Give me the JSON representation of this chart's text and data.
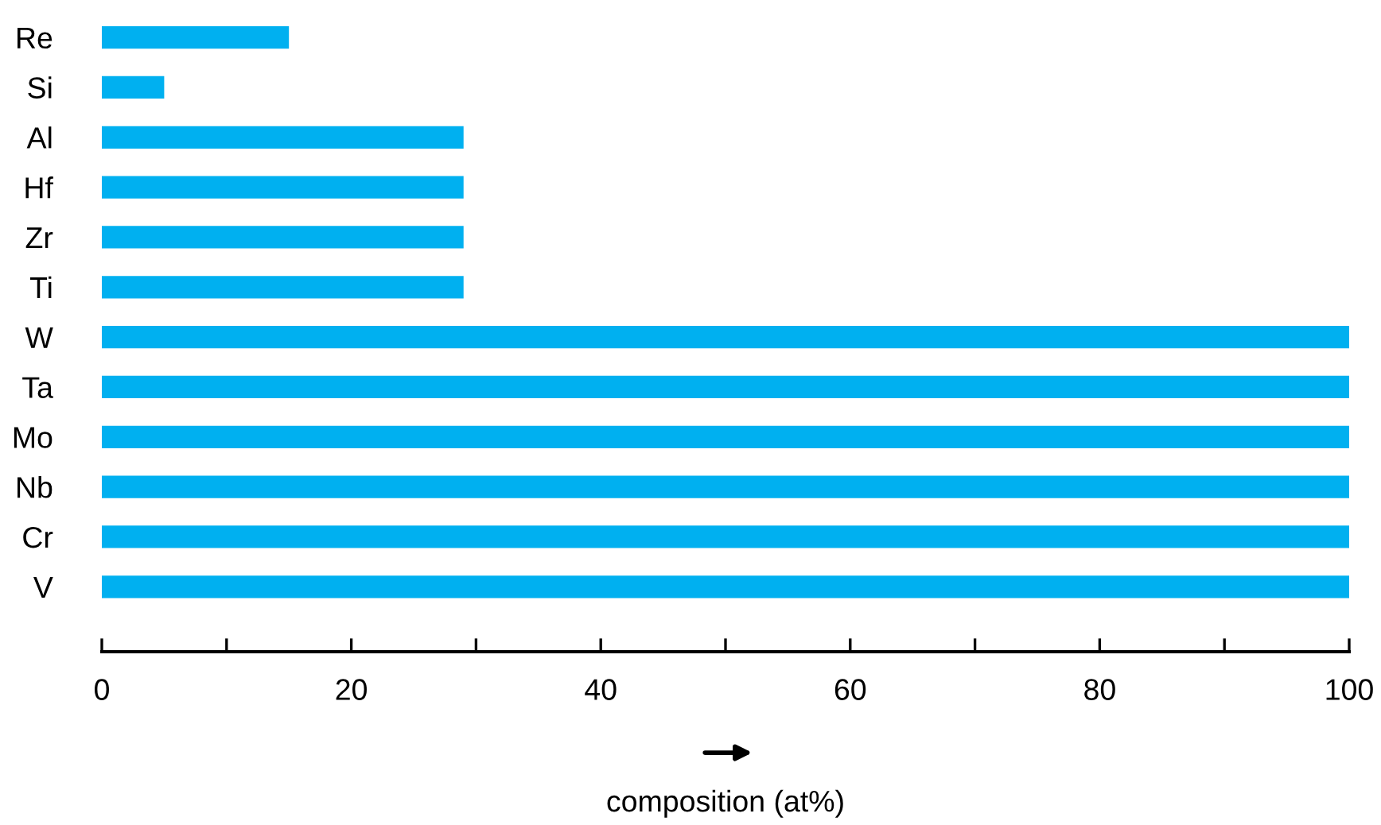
{
  "chart_data": {
    "type": "bar",
    "orientation": "horizontal",
    "xlabel": "composition (at%)",
    "categories": [
      "Re",
      "Si",
      "Al",
      "Hf",
      "Zr",
      "Ti",
      "W",
      "Ta",
      "Mo",
      "Nb",
      "Cr",
      "V"
    ],
    "values": [
      15,
      5,
      29,
      29,
      29,
      29,
      100,
      100,
      100,
      100,
      100,
      100
    ],
    "color": "#00b0f0",
    "xlim": [
      0,
      100
    ],
    "xticks": [
      0,
      {
        "value": 10,
        "label": null
      },
      20,
      {
        "value": 30,
        "label": null
      },
      40,
      {
        "value": 50,
        "label": null
      },
      60,
      {
        "value": 70,
        "label": null
      },
      80,
      {
        "value": 90,
        "label": null
      },
      100
    ],
    "grid": false,
    "legend": false
  }
}
